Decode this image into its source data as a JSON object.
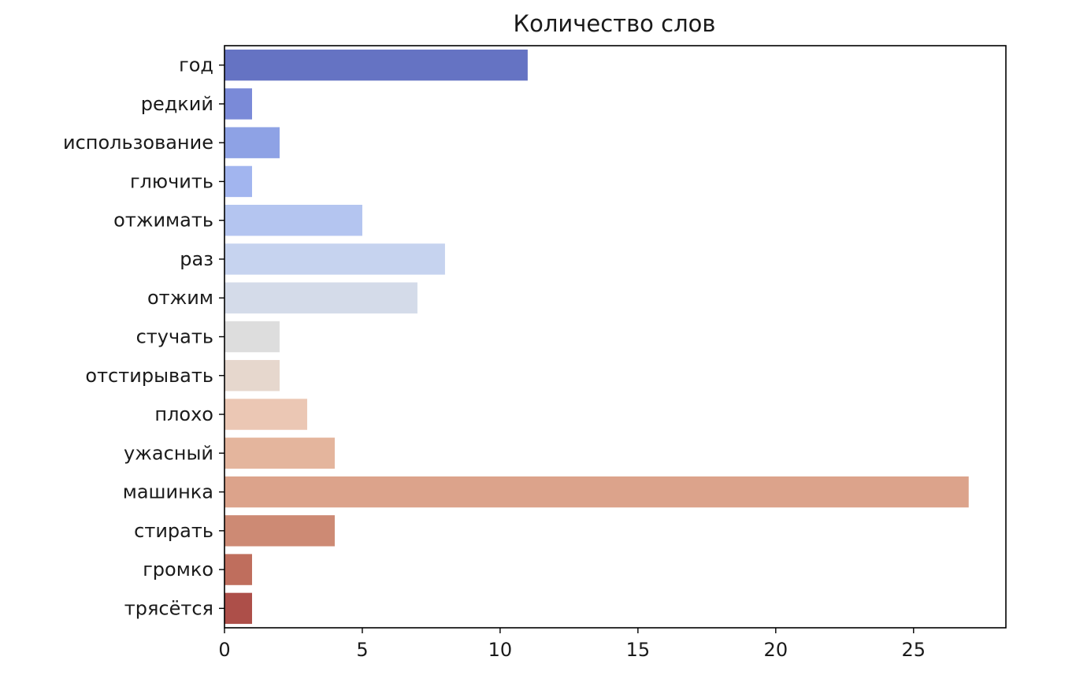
{
  "chart_data": {
    "type": "bar",
    "orientation": "horizontal",
    "title": "Количество слов",
    "xlabel": "",
    "ylabel": "",
    "categories": [
      "год",
      "редкий",
      "использование",
      "глючить",
      "отжимать",
      "раз",
      "отжим",
      "стучать",
      "отстирывать",
      "плохо",
      "ужасный",
      "машинка",
      "стирать",
      "громко",
      "трясётся"
    ],
    "values": [
      11,
      1,
      2,
      1,
      5,
      8,
      7,
      2,
      2,
      3,
      4,
      27,
      4,
      1,
      1
    ],
    "colors": [
      "#6573c3",
      "#7a8ad8",
      "#8ea2e5",
      "#a2b5ef",
      "#b4c5f0",
      "#c6d3ef",
      "#d4dbe9",
      "#dddddd",
      "#e6d7cd",
      "#ebc7b4",
      "#e4b59d",
      "#dca38b",
      "#cd8a74",
      "#bf6e5d",
      "#ad4f49"
    ],
    "xlim": [
      0,
      28.35
    ],
    "xticks": [
      0,
      5,
      10,
      15,
      20,
      25
    ],
    "grid": false,
    "legend": "none"
  }
}
